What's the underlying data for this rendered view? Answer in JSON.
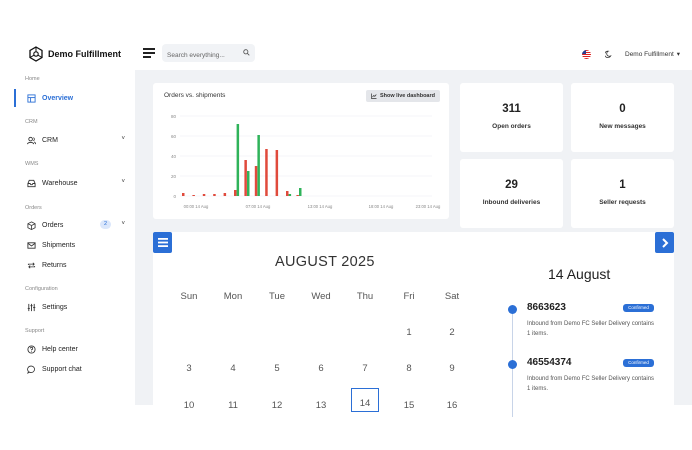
{
  "header": {
    "brand": "Demo Fulfillment",
    "search_placeholder": "Search everything...",
    "user": "Demo Fulfillment",
    "user_caret": "▾"
  },
  "sidebar": {
    "sections": [
      {
        "title": "Home",
        "items": [
          {
            "label": "Overview",
            "icon": "layout-icon",
            "active": true
          }
        ]
      },
      {
        "title": "CRM",
        "items": [
          {
            "label": "CRM",
            "icon": "users-icon",
            "expandable": true
          }
        ]
      },
      {
        "title": "WMS",
        "items": [
          {
            "label": "Warehouse",
            "icon": "inbox-icon",
            "expandable": true
          }
        ]
      },
      {
        "title": "Orders",
        "items": [
          {
            "label": "Orders",
            "icon": "box-icon",
            "badge": "2",
            "expandable": true
          },
          {
            "label": "Shipments",
            "icon": "mail-icon"
          },
          {
            "label": "Returns",
            "icon": "repeat-icon"
          }
        ]
      },
      {
        "title": "Configuration",
        "items": [
          {
            "label": "Settings",
            "icon": "sliders-icon"
          }
        ]
      },
      {
        "title": "Support",
        "items": [
          {
            "label": "Help center",
            "icon": "help-circle-icon"
          },
          {
            "label": "Support chat",
            "icon": "message-icon"
          }
        ]
      }
    ],
    "chevron": "˅"
  },
  "chart_card": {
    "title": "Orders vs. shipments",
    "button_label": "Show live dashboard"
  },
  "chart_data": {
    "type": "bar",
    "title": "Orders vs. shipments",
    "ylim": [
      0,
      80
    ],
    "yticks": [
      0,
      20,
      40,
      60,
      80
    ],
    "xtick_labels": [
      "00:00 14 Aug",
      "07:00 14 Aug",
      "13:00 14 Aug",
      "18:00 14 Aug",
      "23:00 14 Aug"
    ],
    "grid": true,
    "series": [
      {
        "color": "#e04a3c",
        "values": [
          3,
          1,
          2,
          2,
          3,
          6,
          36,
          30,
          47,
          46,
          5,
          1
        ]
      },
      {
        "color": "#2fb35a",
        "values": [
          0,
          0,
          0,
          0,
          0,
          72,
          25,
          61,
          0,
          0,
          2,
          8
        ]
      }
    ],
    "colors": {
      "series_a": "#e04a3c",
      "series_b": "#2fb35a"
    }
  },
  "stats": [
    {
      "value": "311",
      "label": "Open orders"
    },
    {
      "value": "0",
      "label": "New messages"
    },
    {
      "value": "29",
      "label": "Inbound deliveries"
    },
    {
      "value": "1",
      "label": "Seller requests"
    }
  ],
  "calendar": {
    "month": "AUGUST 2025",
    "weekdays": [
      "Sun",
      "Mon",
      "Tue",
      "Wed",
      "Thu",
      "Fri",
      "Sat"
    ],
    "rows": [
      [
        "",
        "",
        "",
        "",
        "",
        "1",
        "2"
      ],
      [
        "3",
        "4",
        "5",
        "6",
        "7",
        "8",
        "9"
      ],
      [
        "10",
        "11",
        "12",
        "13",
        "14",
        "15",
        "16"
      ]
    ],
    "selected_day": "14"
  },
  "events": {
    "date": "14 August",
    "items": [
      {
        "id": "8663623",
        "status": "Confirmed",
        "desc": "Inbound from Demo FC Seller Delivery contains 1 items."
      },
      {
        "id": "46554374",
        "status": "Confirmed",
        "desc": "Inbound from Demo FC Seller Delivery contains 1 items."
      }
    ]
  },
  "colors": {
    "accent": "#2b6fd6",
    "background": "#f0f2f5"
  }
}
